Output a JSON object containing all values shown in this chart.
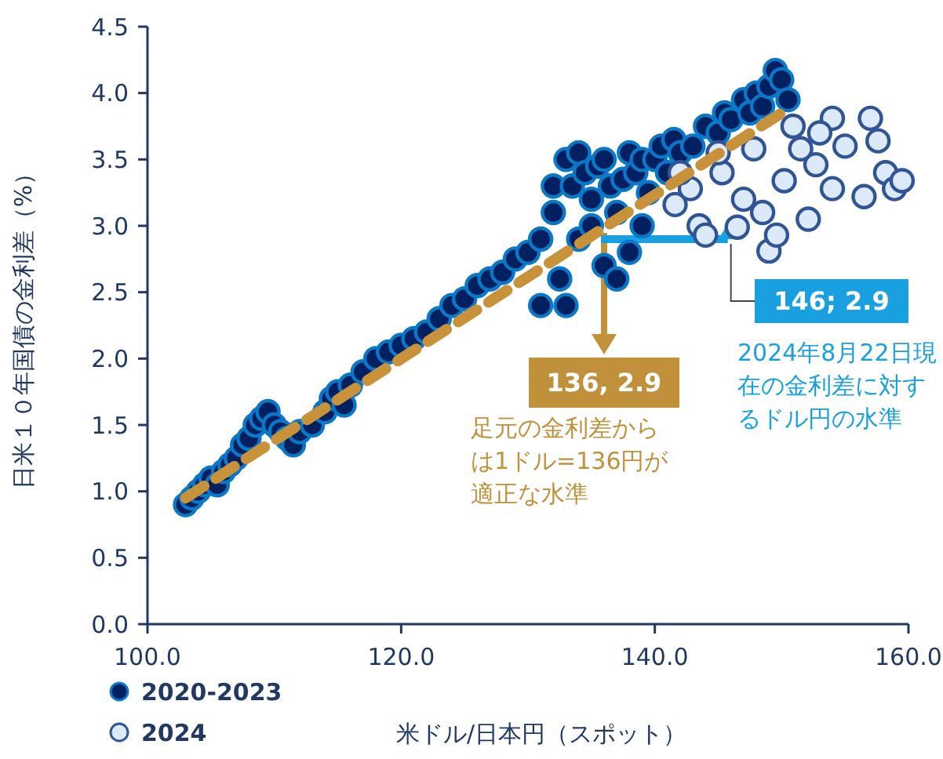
{
  "chart_data": {
    "type": "scatter",
    "xlabel": "米ドル/日本円（スポット）",
    "ylabel": "日米１０年国債の金利差（%）",
    "xlim": [
      100,
      160
    ],
    "xticks": [
      {
        "value": 100,
        "label": "100.0"
      },
      {
        "value": 120,
        "label": "120.0"
      },
      {
        "value": 140,
        "label": "140.0"
      },
      {
        "value": 160,
        "label": "160.0"
      }
    ],
    "ylim": [
      0,
      4.5
    ],
    "yticks": [
      {
        "value": 0,
        "label": "0.0"
      },
      {
        "value": 0.5,
        "label": "0.5"
      },
      {
        "value": 1,
        "label": "1.0"
      },
      {
        "value": 1.5,
        "label": "1.5"
      },
      {
        "value": 2,
        "label": "2.0"
      },
      {
        "value": 2.5,
        "label": "2.5"
      },
      {
        "value": 3,
        "label": "3.0"
      },
      {
        "value": 3.5,
        "label": "3.5"
      },
      {
        "value": 4,
        "label": "4.0"
      },
      {
        "value": 4.5,
        "label": "4.5"
      }
    ],
    "grid": false,
    "legend": "bottom left",
    "marker": "circle",
    "series": [
      {
        "name": "2020-2023",
        "color": "#002060",
        "x": [
          103,
          103.5,
          104,
          104.5,
          105,
          105.5,
          106,
          106.5,
          107,
          107.5,
          108,
          108.5,
          109,
          109.5,
          110,
          110.5,
          111,
          111.5,
          112,
          113,
          114,
          114.5,
          115,
          115.5,
          116,
          117,
          118,
          119,
          120,
          121,
          122,
          123,
          124,
          125,
          126,
          127,
          128,
          129,
          130,
          131,
          131,
          132,
          132,
          132.5,
          133,
          133,
          133.5,
          134,
          134.5,
          135,
          135.5,
          136,
          136.5,
          137,
          137.5,
          138,
          138.5,
          139,
          139.5,
          140,
          140.5,
          141,
          141.5,
          142,
          143,
          144,
          145,
          145.5,
          146,
          147,
          147.5,
          148,
          148.5,
          149,
          149.5,
          150,
          150.5,
          134,
          136,
          138,
          135,
          137,
          139
        ],
        "values": [
          0.9,
          0.95,
          1.0,
          1.05,
          1.1,
          1.05,
          1.15,
          1.2,
          1.25,
          1.35,
          1.4,
          1.5,
          1.55,
          1.6,
          1.5,
          1.45,
          1.4,
          1.35,
          1.45,
          1.5,
          1.6,
          1.7,
          1.75,
          1.65,
          1.8,
          1.9,
          2.0,
          2.05,
          2.1,
          2.15,
          2.2,
          2.3,
          2.4,
          2.45,
          2.55,
          2.6,
          2.65,
          2.75,
          2.8,
          2.9,
          2.4,
          3.1,
          3.3,
          2.6,
          3.5,
          2.4,
          3.3,
          3.55,
          3.4,
          3.2,
          3.45,
          3.5,
          3.3,
          3.1,
          3.35,
          3.55,
          3.4,
          3.5,
          3.25,
          3.5,
          3.6,
          3.4,
          3.65,
          3.55,
          3.6,
          3.75,
          3.7,
          3.85,
          3.8,
          3.95,
          3.85,
          4.0,
          3.9,
          4.05,
          4.17,
          4.1,
          3.95,
          2.9,
          2.7,
          2.8,
          3.0,
          2.6,
          3.0
        ]
      },
      {
        "name": "2024",
        "color": "#dce9f8",
        "x": [
          141.6,
          142.8,
          143.5,
          144,
          145.3,
          146.5,
          147,
          147.8,
          148.5,
          149,
          149.6,
          150.2,
          150.9,
          151.5,
          152.1,
          152.7,
          154,
          154,
          155,
          156.5,
          157,
          157.6,
          158.2,
          158.9,
          159.5,
          153,
          145,
          142
        ],
        "values": [
          3.16,
          3.28,
          3.0,
          2.93,
          3.4,
          2.99,
          3.2,
          3.58,
          3.1,
          2.81,
          2.93,
          3.34,
          3.75,
          3.58,
          3.05,
          3.46,
          3.81,
          3.28,
          3.6,
          3.22,
          3.81,
          3.64,
          3.4,
          3.28,
          3.34,
          3.7,
          3.55,
          3.4
        ]
      },
      {
        "type": "line",
        "color": "#c8923a",
        "line_style": "dashed",
        "marker": "none",
        "x": [
          103,
          150
        ],
        "values": [
          0.95,
          3.85
        ]
      }
    ],
    "annotations": [
      {
        "text": "136, 2.9",
        "x": 136,
        "y": 2.9
      },
      "足元の金利差からは1ドル=136円が適正な水準",
      {
        "text": "146; 2.9",
        "x": 146,
        "y": 2.9
      },
      "2024年8月22日現在の金利差に対するドル円の水準"
    ]
  }
}
